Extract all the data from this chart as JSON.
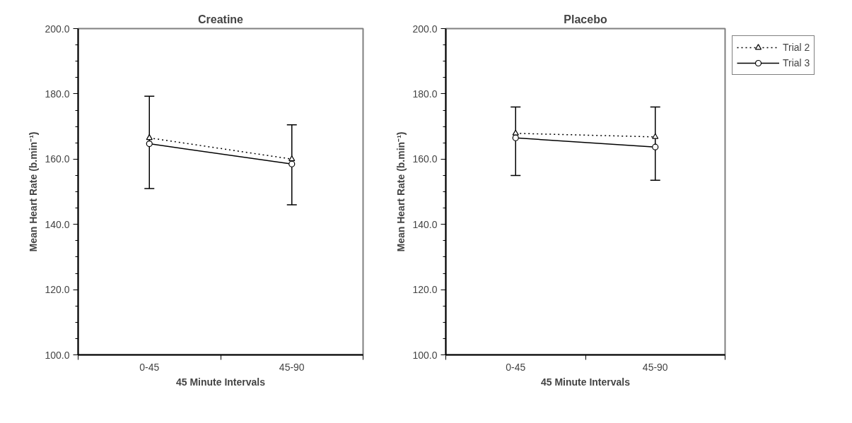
{
  "chart_data": [
    {
      "type": "line",
      "title": "Creatine",
      "xlabel": "45 Minute Intervals",
      "ylabel": "Mean Heart Rate (b.min⁻¹)",
      "categories": [
        "0-45",
        "45-90"
      ],
      "ylim": [
        100,
        200
      ],
      "yticks": [
        {
          "value": 100,
          "label": "100.0"
        },
        {
          "value": 120,
          "label": "120.0"
        },
        {
          "value": 140,
          "label": "140.0"
        },
        {
          "value": 160,
          "label": "160.0"
        },
        {
          "value": 180,
          "label": "180.0"
        },
        {
          "value": 200,
          "label": "200.0"
        }
      ],
      "grid": false,
      "legend": false,
      "series": [
        {
          "color": "#000000",
          "values": [
            166.5,
            160.0
          ],
          "marker": "triangle",
          "line_style": "dotted"
        },
        {
          "color": "#000000",
          "values": [
            164.7,
            158.5
          ],
          "marker": "circle",
          "line_style": "solid",
          "errors": [
            [
              151.0,
              179.3
            ],
            [
              146.0,
              170.5
            ]
          ]
        }
      ]
    },
    {
      "type": "line",
      "title": "Placebo",
      "xlabel": "45 Minute Intervals",
      "ylabel": "Mean Heart Rate (b.min⁻¹)",
      "categories": [
        "0-45",
        "45-90"
      ],
      "ylim": [
        100,
        200
      ],
      "yticks": [
        {
          "value": 100,
          "label": "100.0"
        },
        {
          "value": 120,
          "label": "120.0"
        },
        {
          "value": 140,
          "label": "140.0"
        },
        {
          "value": 160,
          "label": "160.0"
        },
        {
          "value": 180,
          "label": "180.0"
        },
        {
          "value": 200,
          "label": "200.0"
        }
      ],
      "grid": false,
      "legend": "top right",
      "series": [
        {
          "name": "Trial 2",
          "color": "#000000",
          "values": [
            167.9,
            166.8
          ],
          "marker": "triangle",
          "line_style": "dotted"
        },
        {
          "name": "Trial 3",
          "color": "#000000",
          "values": [
            166.5,
            163.7
          ],
          "marker": "circle",
          "line_style": "solid",
          "errors": [
            [
              155.0,
              176.0
            ],
            [
              153.5,
              176.0
            ]
          ]
        }
      ]
    }
  ]
}
